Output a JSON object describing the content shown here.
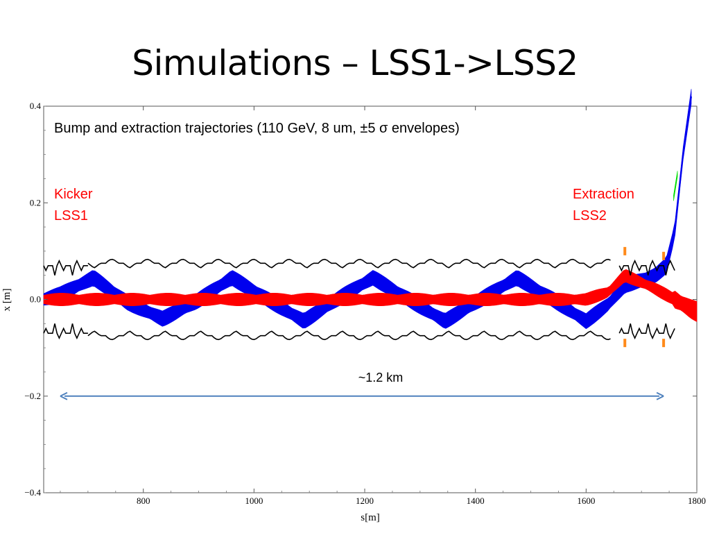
{
  "slide": {
    "title": "Simulations – LSS1->LSS2"
  },
  "chart_data": {
    "type": "line",
    "xlabel": "s[m]",
    "ylabel": "x [m]",
    "xlim": [
      620,
      1800
    ],
    "ylim": [
      -0.4,
      0.4
    ],
    "xticks": [
      800,
      1000,
      1200,
      1400,
      1600,
      1800
    ],
    "xtick_labels": [
      "800",
      "1000",
      "1200",
      "1400",
      "1600",
      "1800"
    ],
    "yticks": [
      0.4,
      0.2,
      0.0,
      -0.2,
      -0.4
    ],
    "ytick_labels": [
      "0.4",
      "0.2",
      "0.0",
      "−0.2",
      "−0.4"
    ],
    "grid": false,
    "annotations": {
      "description": "Bump and extraction trajectories (110 GeV, 8 um, ±5 σ envelopes)",
      "kicker_line1": "Kicker",
      "kicker_line2": "LSS1",
      "extraction_line1": "Extraction",
      "extraction_line2": "LSS2",
      "distance_label": "~1.2 km"
    },
    "distance_arrow": {
      "x_start": 650,
      "x_end": 1740,
      "y": -0.2
    },
    "aperture": {
      "half_width": 0.075,
      "period_m": 64,
      "cell_dip_m": 0.01
    },
    "bump_peaks": [
      {
        "s": 710,
        "x": 0.06
      },
      {
        "s": 960,
        "x": 0.065
      },
      {
        "s": 1215,
        "x": 0.065
      },
      {
        "s": 1475,
        "x": 0.06
      },
      {
        "s": 835,
        "x": -0.05
      },
      {
        "s": 1090,
        "x": -0.06
      },
      {
        "s": 1345,
        "x": -0.065
      },
      {
        "s": 1600,
        "x": -0.065
      }
    ],
    "series": [
      {
        "color": "#0000ee",
        "role": "bumped beam envelope",
        "centroid": [
          [
            620,
            0
          ],
          [
            650,
            0.01
          ],
          [
            710,
            0.045
          ],
          [
            770,
            -0.005
          ],
          [
            835,
            -0.04
          ],
          [
            895,
            -0.005
          ],
          [
            960,
            0.045
          ],
          [
            1025,
            0.0
          ],
          [
            1090,
            -0.045
          ],
          [
            1150,
            0.0
          ],
          [
            1215,
            0.045
          ],
          [
            1280,
            0.0
          ],
          [
            1345,
            -0.045
          ],
          [
            1410,
            0.0
          ],
          [
            1475,
            0.045
          ],
          [
            1540,
            0.0
          ],
          [
            1600,
            -0.045
          ],
          [
            1640,
            -0.01
          ],
          [
            1670,
            0.03
          ],
          [
            1700,
            0.04
          ],
          [
            1725,
            0.05
          ],
          [
            1745,
            0.07
          ],
          [
            1760,
            0.14
          ],
          [
            1775,
            0.3
          ],
          [
            1790,
            0.42
          ]
        ],
        "half_width": 0.015
      },
      {
        "color": "#ff0000",
        "role": "circulating beam envelope",
        "centroid": [
          [
            620,
            0
          ],
          [
            700,
            0
          ],
          [
            800,
            0
          ],
          [
            900,
            0
          ],
          [
            1000,
            0
          ],
          [
            1100,
            0
          ],
          [
            1200,
            0
          ],
          [
            1300,
            0
          ],
          [
            1400,
            0
          ],
          [
            1500,
            0
          ],
          [
            1600,
            0
          ],
          [
            1640,
            0.015
          ],
          [
            1670,
            0.05
          ],
          [
            1690,
            0.04
          ],
          [
            1720,
            0.025
          ],
          [
            1760,
            0.0
          ],
          [
            1790,
            -0.02
          ],
          [
            1800,
            -0.025
          ]
        ],
        "half_width": 0.012
      },
      {
        "color": "#00dd00",
        "role": "extracted beam envelope",
        "centroid": [
          [
            1758,
            0.21
          ],
          [
            1765,
            0.26
          ]
        ],
        "half_width": 0.006
      }
    ]
  }
}
